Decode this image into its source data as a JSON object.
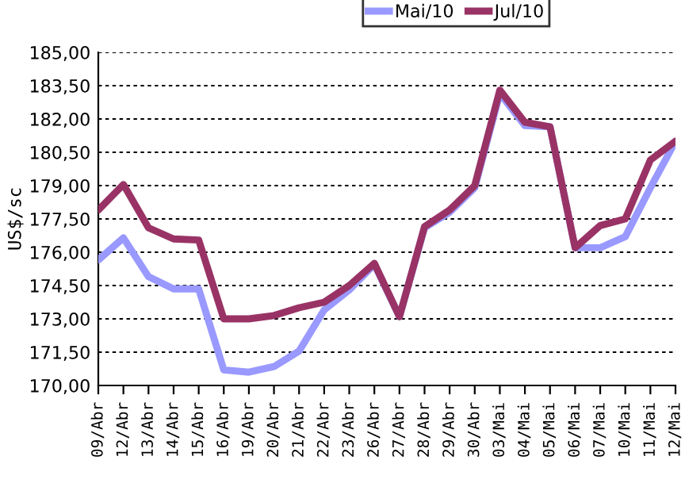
{
  "chart_data": {
    "type": "line",
    "ylabel": "US$/sc",
    "categories": [
      "09/Abr",
      "12/Abr",
      "13/Abr",
      "14/Abr",
      "15/Abr",
      "16/Abr",
      "19/Abr",
      "20/Abr",
      "21/Abr",
      "22/Abr",
      "23/Abr",
      "26/Abr",
      "27/Abr",
      "28/Abr",
      "29/Abr",
      "30/Abr",
      "03/Mai",
      "04/Mai",
      "05/Mai",
      "06/Mai",
      "07/Mai",
      "10/Mai",
      "11/Mai",
      "12/Mai"
    ],
    "series": [
      {
        "name": "Mai/10",
        "color": "#9999ff",
        "values": [
          175.65,
          176.65,
          174.9,
          174.35,
          174.35,
          170.7,
          170.6,
          170.85,
          171.55,
          173.4,
          174.3,
          175.45,
          173.1,
          177.1,
          177.8,
          178.9,
          183.15,
          181.7,
          181.65,
          176.2,
          176.2,
          176.7,
          178.9,
          181.0
        ]
      },
      {
        "name": "Jul/10",
        "color": "#993366",
        "values": [
          177.9,
          179.05,
          177.1,
          176.6,
          176.55,
          173.0,
          173.0,
          173.15,
          173.5,
          173.75,
          174.5,
          175.5,
          173.1,
          177.15,
          177.9,
          179.0,
          183.3,
          181.85,
          181.65,
          176.2,
          177.2,
          177.5,
          180.15,
          181.0
        ]
      }
    ],
    "ylim": [
      170,
      185
    ],
    "yticks": [
      {
        "value": 170,
        "label": "170,00"
      },
      {
        "value": 171.5,
        "label": "171,50"
      },
      {
        "value": 173,
        "label": "173,00"
      },
      {
        "value": 174.5,
        "label": "174,50"
      },
      {
        "value": 176,
        "label": "176,00"
      },
      {
        "value": 177.5,
        "label": "177,50"
      },
      {
        "value": 179,
        "label": "179,00"
      },
      {
        "value": 180.5,
        "label": "180,50"
      },
      {
        "value": 182,
        "label": "182,00"
      },
      {
        "value": 183.5,
        "label": "183,50"
      },
      {
        "value": 185,
        "label": "185,00"
      }
    ],
    "grid": "y",
    "legend": "top",
    "marker": "none",
    "line_style": "solid"
  }
}
